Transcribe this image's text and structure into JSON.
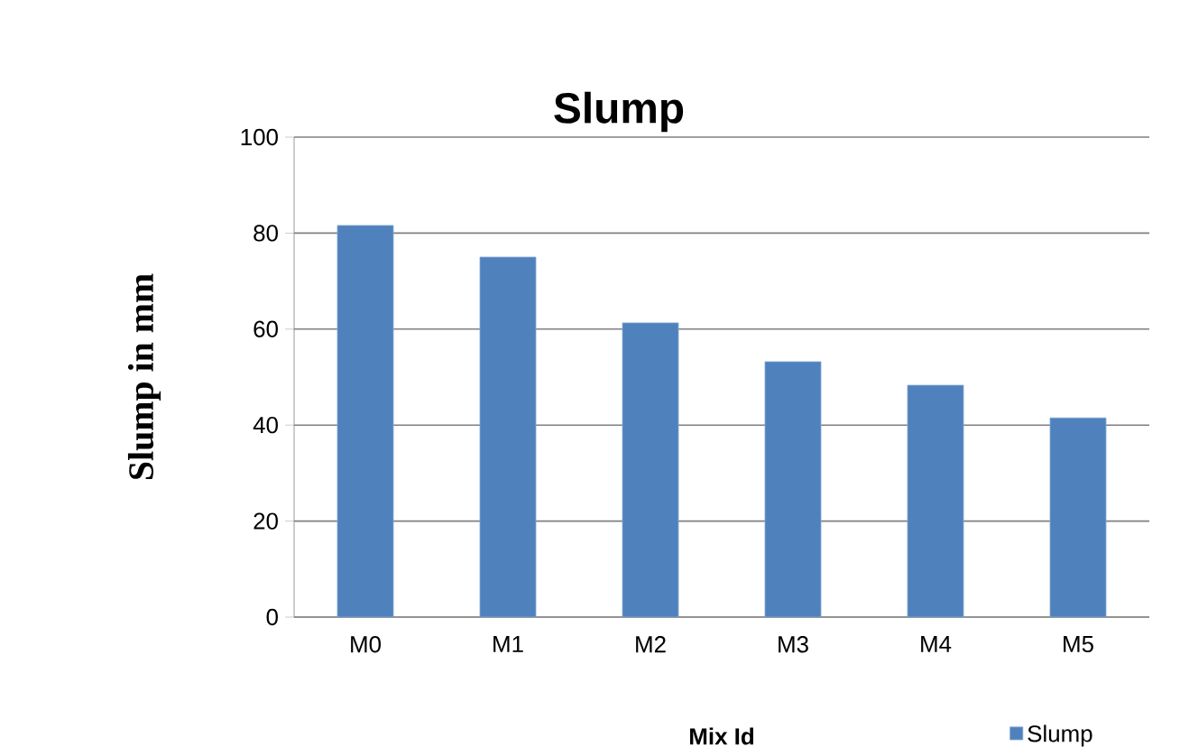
{
  "chart_data": {
    "type": "bar",
    "title": "Slump",
    "xlabel": "Mix Id",
    "ylabel": "Slump in mm",
    "categories": [
      "M0",
      "M1",
      "M2",
      "M3",
      "M4",
      "M5"
    ],
    "series": [
      {
        "name": "Slump",
        "color": "#4f81bd",
        "values": [
          81.6,
          75.0,
          61.3,
          53.2,
          48.3,
          41.5
        ]
      }
    ],
    "ylim": [
      0,
      100
    ],
    "yticks": [
      0,
      20,
      40,
      60,
      80,
      100
    ],
    "grid": "y",
    "legend": "bottom right"
  }
}
